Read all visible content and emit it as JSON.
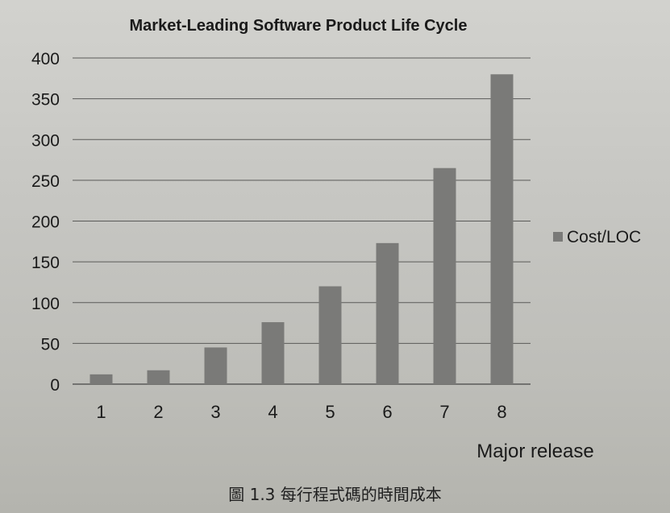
{
  "chart_data": {
    "type": "bar",
    "title": "Market-Leading Software Product Life Cycle",
    "xlabel": "Major release",
    "ylabel": "",
    "categories": [
      "1",
      "2",
      "3",
      "4",
      "5",
      "6",
      "7",
      "8"
    ],
    "series": [
      {
        "name": "Cost/LOC",
        "values": [
          12,
          17,
          45,
          76,
          120,
          173,
          265,
          380
        ]
      }
    ],
    "ylim": [
      0,
      400
    ],
    "yticks": [
      0,
      50,
      100,
      150,
      200,
      250,
      300,
      350,
      400
    ],
    "grid": true,
    "legend_position": "right",
    "colors": {
      "bar": "#7a7a78",
      "grid": "#5a5a58",
      "text": "#1a1a1a"
    }
  },
  "caption": "圖 1.3 每行程式碼的時間成本"
}
